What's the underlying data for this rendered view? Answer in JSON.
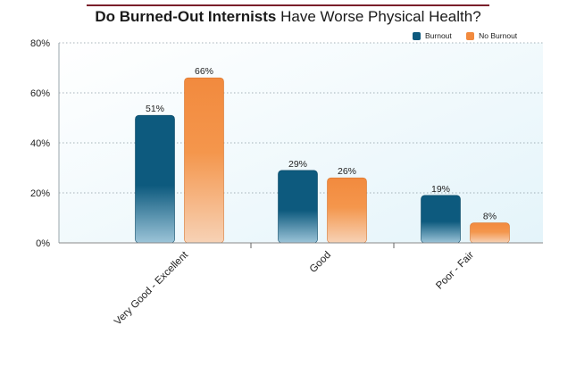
{
  "title_bold": "Do Burned-Out Internists",
  "title_rest": " Have Worse Physical Health?",
  "chart_data": {
    "type": "bar",
    "title": "Do Burned-Out Internists Have Worse Physical Health?",
    "categories": [
      "Very Good - Excellent",
      "Good",
      "Poor - Fair"
    ],
    "series": [
      {
        "name": "Burnout",
        "values": [
          51,
          29,
          19
        ],
        "color": "#0d5a7e"
      },
      {
        "name": "No Burnout",
        "values": [
          66,
          26,
          8
        ],
        "color": "#f28a3e"
      }
    ],
    "ylim": [
      0,
      80
    ],
    "yticks": [
      0,
      20,
      40,
      60,
      80
    ],
    "ytick_suffix": "%",
    "value_suffix": "%",
    "grid": true,
    "legend_position": "top-right"
  }
}
